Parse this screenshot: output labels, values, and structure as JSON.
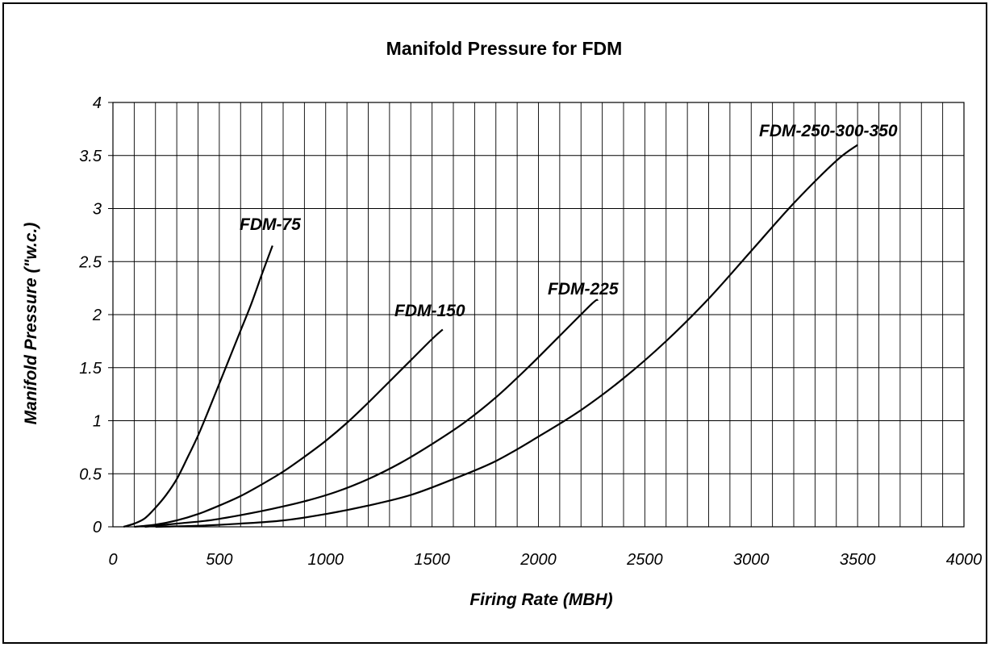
{
  "chart_data": {
    "type": "line",
    "title": "Manifold Pressure for FDM",
    "xlabel": "Firing Rate (MBH)",
    "ylabel": "Manifold Pressure (\"w.c.)",
    "xlim": [
      0,
      4000
    ],
    "ylim": [
      0,
      4
    ],
    "x_ticks": [
      "0",
      "500",
      "1000",
      "1500",
      "2000",
      "2500",
      "3000",
      "3500",
      "4000"
    ],
    "y_ticks": [
      "0",
      "0.5",
      "1",
      "1.5",
      "2",
      "2.5",
      "3",
      "3.5",
      "4"
    ],
    "grid": true,
    "grid_minor_x_step": 100,
    "grid_y_step": 0.5,
    "legend": "none",
    "series": [
      {
        "name": "FDM-75",
        "x": [
          50,
          100,
          150,
          200,
          250,
          300,
          350,
          400,
          450,
          500,
          550,
          600,
          650,
          700,
          750
        ],
        "y": [
          0.0,
          0.03,
          0.08,
          0.18,
          0.3,
          0.45,
          0.65,
          0.86,
          1.1,
          1.35,
          1.6,
          1.85,
          2.1,
          2.38,
          2.65
        ]
      },
      {
        "name": "FDM-150",
        "x": [
          100,
          200,
          300,
          400,
          500,
          600,
          700,
          800,
          900,
          1000,
          1100,
          1200,
          1300,
          1400,
          1500,
          1550
        ],
        "y": [
          0.0,
          0.02,
          0.06,
          0.12,
          0.2,
          0.29,
          0.4,
          0.52,
          0.66,
          0.81,
          0.98,
          1.17,
          1.37,
          1.57,
          1.77,
          1.86
        ]
      },
      {
        "name": "FDM-225",
        "x": [
          150,
          300,
          450,
          600,
          750,
          900,
          1050,
          1200,
          1350,
          1500,
          1650,
          1800,
          1950,
          2100,
          2250,
          2280
        ],
        "y": [
          0.0,
          0.03,
          0.06,
          0.11,
          0.17,
          0.24,
          0.33,
          0.45,
          0.6,
          0.78,
          0.98,
          1.22,
          1.5,
          1.8,
          2.1,
          2.14
        ]
      },
      {
        "name": "FDM-250-300-350",
        "x": [
          200,
          400,
          600,
          800,
          1000,
          1200,
          1400,
          1600,
          1800,
          2000,
          2200,
          2400,
          2600,
          2800,
          3000,
          3200,
          3400,
          3500
        ],
        "y": [
          0.0,
          0.01,
          0.03,
          0.06,
          0.12,
          0.2,
          0.3,
          0.45,
          0.62,
          0.85,
          1.1,
          1.4,
          1.75,
          2.15,
          2.6,
          3.05,
          3.45,
          3.6
        ]
      }
    ]
  }
}
